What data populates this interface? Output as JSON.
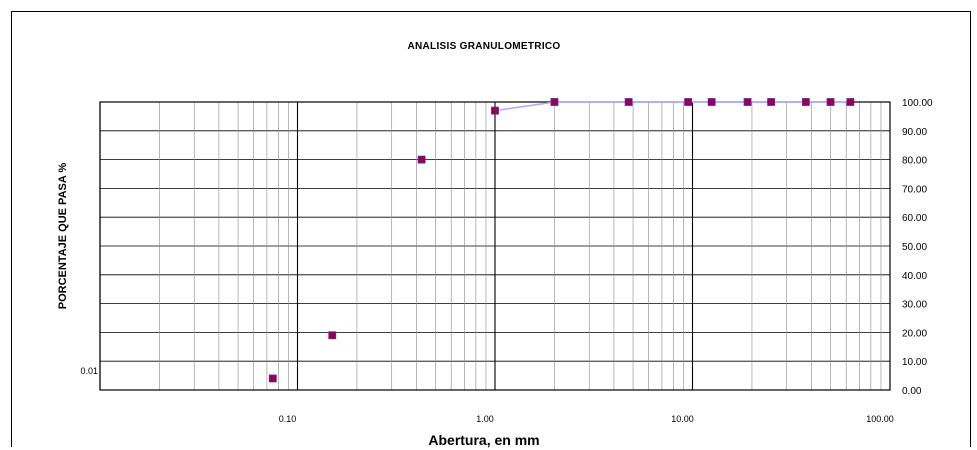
{
  "chart_data": {
    "type": "scatter",
    "title": "ANALISIS GRANULOMETRICO",
    "xlabel": "Abertura, en mm",
    "ylabel": "PORCENTAJE QUE PASA %",
    "x_scale": "log",
    "xlim": [
      0.01,
      100
    ],
    "ylim": [
      0,
      100
    ],
    "x_tick_labels": [
      "0.01",
      "0.10",
      "1.00",
      "10.00",
      "100.00"
    ],
    "y_tick_labels": [
      "0.00",
      "10.00",
      "20.00",
      "30.00",
      "40.00",
      "50.00",
      "60.00",
      "70.00",
      "80.00",
      "90.00",
      "100.00"
    ],
    "y_axis_side": "right",
    "grid": true,
    "marker_color": "#99004c",
    "line_color": "#a9a9ff",
    "series": [
      {
        "x": [
          0.075,
          0.15,
          0.425,
          1.0,
          2.0,
          4.75,
          9.5,
          12.5,
          19.0,
          25.0,
          37.5,
          50.0,
          63.0
        ],
        "y": [
          4,
          19,
          80,
          97,
          100,
          101,
          101,
          101,
          101,
          101,
          101,
          101,
          101
        ]
      }
    ]
  }
}
